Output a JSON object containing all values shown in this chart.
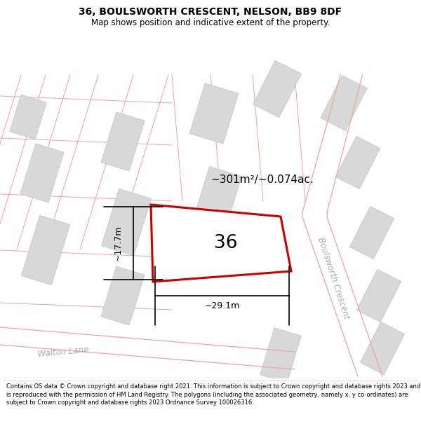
{
  "title": "36, BOULSWORTH CRESCENT, NELSON, BB9 8DF",
  "subtitle": "Map shows position and indicative extent of the property.",
  "footer": "Contains OS data © Crown copyright and database right 2021. This information is subject to Crown copyright and database rights 2023 and is reproduced with the permission of HM Land Registry. The polygons (including the associated geometry, namely x, y co-ordinates) are subject to Crown copyright and database rights 2023 Ordnance Survey 100026316.",
  "area_label": "~301m²/~0.074ac.",
  "width_label": "~29.1m",
  "height_label": "~17.7m",
  "number_label": "36",
  "highlight_stroke": "#cc0000",
  "pink_line_color": "#f5a0a0",
  "building_fill": "#d8d8d8",
  "building_edge": "#c0c0c0",
  "road_fill": "#ffffff",
  "map_bg": "#ffffff",
  "street_label_color": "#aaaaaa"
}
